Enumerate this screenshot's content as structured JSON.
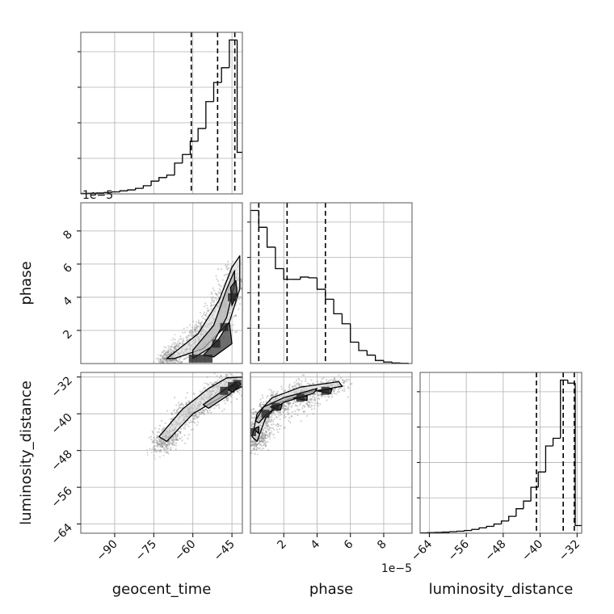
{
  "chart_data": {
    "type": "corner",
    "parameters": [
      "geocent_time",
      "phase",
      "luminosity_distance"
    ],
    "grid": true,
    "colors": {
      "line": "#000000",
      "grid": "#b0b0b0",
      "points": "#7f7f7f",
      "fill_dark": "#3c3c3c",
      "fill_light": "#b4b4b4"
    },
    "axes": {
      "geocent_time": {
        "label": "geocent_time",
        "range": [
          -103,
          -41
        ],
        "ticks": [
          -90,
          -75,
          -60,
          -45
        ]
      },
      "phase": {
        "label": "phase",
        "range": [
          0,
          9.7
        ],
        "ticks": [
          2,
          4,
          6,
          8
        ],
        "ticks_y": [
          2,
          4,
          6,
          8
        ],
        "offset_text": "1e−5"
      },
      "luminosity_distance": {
        "label": "luminosity_distance",
        "range": [
          -66,
          -31
        ],
        "ticks": [
          -64,
          -56,
          -48,
          -40,
          -32
        ],
        "ticks_y": [
          -32,
          -40,
          -48,
          -56,
          -64
        ]
      }
    },
    "histograms": [
      {
        "parameter": "geocent_time",
        "bin_edges": [
          -103,
          -100,
          -97,
          -94,
          -91,
          -88,
          -85,
          -82,
          -79,
          -76,
          -73,
          -70,
          -67,
          -64,
          -61,
          -58,
          -55,
          -52,
          -49,
          -46,
          -43,
          -40
        ],
        "counts": [
          0.3,
          0.4,
          0.6,
          0.9,
          1.3,
          2.0,
          2.6,
          3.6,
          5.3,
          8.3,
          10.6,
          12.2,
          20.0,
          25.6,
          34.2,
          42.5,
          60.0,
          72.4,
          82.0,
          100.0,
          27.0
        ],
        "quantiles": [
          -60.6,
          -50.5,
          -43.9
        ]
      },
      {
        "parameter": "phase",
        "bin_edges": [
          0,
          0.5,
          1.0,
          1.5,
          2.0,
          2.5,
          3.0,
          3.5,
          4.0,
          4.5,
          5.0,
          5.5,
          6.0,
          6.5,
          7.0,
          7.5,
          8.0,
          8.5,
          9.0,
          9.5
        ],
        "counts": [
          100.0,
          89.0,
          76.0,
          62.0,
          55.0,
          55.0,
          56.5,
          56.0,
          48.5,
          42.0,
          32.5,
          26.0,
          14.0,
          8.5,
          5.5,
          2.0,
          1.0,
          0.4,
          0.2
        ],
        "quantiles": [
          0.5,
          2.2,
          4.5
        ]
      },
      {
        "parameter": "luminosity_distance",
        "bin_edges": [
          -66,
          -64.4,
          -62.8,
          -61.2,
          -59.6,
          -58.0,
          -56.4,
          -54.8,
          -53.2,
          -51.6,
          -50.0,
          -48.4,
          -46.8,
          -45.2,
          -43.6,
          -42.0,
          -40.4,
          -38.8,
          -37.2,
          -35.6,
          -34.0,
          -32.4,
          -30.8
        ],
        "counts": [
          0.2,
          0.4,
          0.5,
          0.7,
          1.0,
          1.3,
          1.8,
          2.5,
          3.5,
          4.5,
          6.0,
          8.0,
          11.0,
          16.0,
          21.0,
          30.0,
          40.0,
          57.0,
          62.0,
          100.0,
          98.0,
          5.0
        ],
        "quantiles": [
          -40.8,
          -35.0,
          -32.6
        ]
      }
    ],
    "density_panels": [
      {
        "x": "geocent_time",
        "y": "phase",
        "contour_levels": [
          [
            [
              -67,
              0.3
            ],
            [
              -56,
              0.9
            ],
            [
              -46,
              2.5
            ],
            [
              -42,
              4.5
            ],
            [
              -42,
              6.5
            ],
            [
              -45,
              5.8
            ],
            [
              -50,
              3.8
            ],
            [
              -58,
              1.8
            ],
            [
              -70,
              0.3
            ]
          ],
          [
            [
              -60,
              0.3
            ],
            [
              -53,
              1.0
            ],
            [
              -47,
              2.8
            ],
            [
              -44,
              4.8
            ],
            [
              -44,
              5.6
            ],
            [
              -47,
              4.5
            ],
            [
              -52,
              2.3
            ],
            [
              -60,
              0.8
            ]
          ],
          [
            [
              -56,
              0.5
            ],
            [
              -50,
              1.5
            ],
            [
              -46,
              2.5
            ],
            [
              -45,
              1.2
            ],
            [
              -52,
              0.4
            ]
          ],
          [
            [
              -45,
              3.5
            ],
            [
              -43,
              4.2
            ],
            [
              -43.5,
              5.0
            ],
            [
              -45.5,
              4.6
            ]
          ]
        ],
        "dense_cells": [
          [
            -60,
            0.3
          ],
          [
            -57,
            0.3
          ],
          [
            -54,
            0.3
          ],
          [
            -51,
            1.2
          ],
          [
            -48,
            2.2
          ],
          [
            -45,
            4.0
          ]
        ]
      },
      {
        "x": "geocent_time",
        "y": "luminosity_distance",
        "contour_levels": [
          [
            [
              -73,
              -45
            ],
            [
              -64,
              -39
            ],
            [
              -54,
              -34.5
            ],
            [
              -47,
              -32.2
            ],
            [
              -40.8,
              -32
            ],
            [
              -40.8,
              -34
            ],
            [
              -48,
              -36
            ],
            [
              -60,
              -40
            ],
            [
              -70,
              -46
            ]
          ],
          [
            [
              -56,
              -38
            ],
            [
              -48,
              -34.8
            ],
            [
              -43,
              -33
            ],
            [
              -41.5,
              -33.5
            ],
            [
              -46,
              -35.8
            ],
            [
              -54,
              -38.8
            ]
          ],
          [
            [
              -46.5,
              -34.8
            ],
            [
              -43.5,
              -33.2
            ],
            [
              -42.5,
              -34.0
            ],
            [
              -44.5,
              -35.3
            ]
          ]
        ],
        "dense_cells": [
          [
            -45,
            -34
          ],
          [
            -48,
            -35
          ],
          [
            -43,
            -33.5
          ]
        ]
      },
      {
        "x": "phase",
        "y": "luminosity_distance",
        "contour_levels": [
          [
            [
              0.1,
              -45
            ],
            [
              0.4,
              -40
            ],
            [
              1.3,
              -36.5
            ],
            [
              3.0,
              -34.2
            ],
            [
              5.3,
              -33.0
            ],
            [
              5.5,
              -34.0
            ],
            [
              3.5,
              -35.3
            ],
            [
              1.8,
              -37.5
            ],
            [
              0.9,
              -41
            ],
            [
              0.4,
              -46
            ]
          ],
          [
            [
              0.3,
              -41.5
            ],
            [
              0.8,
              -38.5
            ],
            [
              2.0,
              -36.5
            ],
            [
              4.0,
              -34.5
            ],
            [
              3.8,
              -35.5
            ],
            [
              2.0,
              -37.5
            ],
            [
              1.0,
              -40
            ],
            [
              0.5,
              -42
            ]
          ],
          [
            [
              0.2,
              -43.3
            ],
            [
              0.5,
              -42.8
            ],
            [
              0.5,
              -44.3
            ]
          ],
          [
            [
              1.2,
              -38.5
            ],
            [
              1.9,
              -37.9
            ],
            [
              1.8,
              -39.2
            ]
          ],
          [
            [
              2.6,
              -36.6
            ],
            [
              3.4,
              -36.1
            ],
            [
              3.4,
              -37.1
            ]
          ],
          [
            [
              4.0,
              -35.0
            ],
            [
              4.9,
              -34.6
            ],
            [
              4.8,
              -35.6
            ]
          ]
        ],
        "dense_cells": [
          [
            0.1,
            -44
          ],
          [
            0.9,
            -40
          ],
          [
            1.5,
            -38.5
          ],
          [
            3.0,
            -36.5
          ],
          [
            4.5,
            -35
          ]
        ]
      }
    ]
  }
}
